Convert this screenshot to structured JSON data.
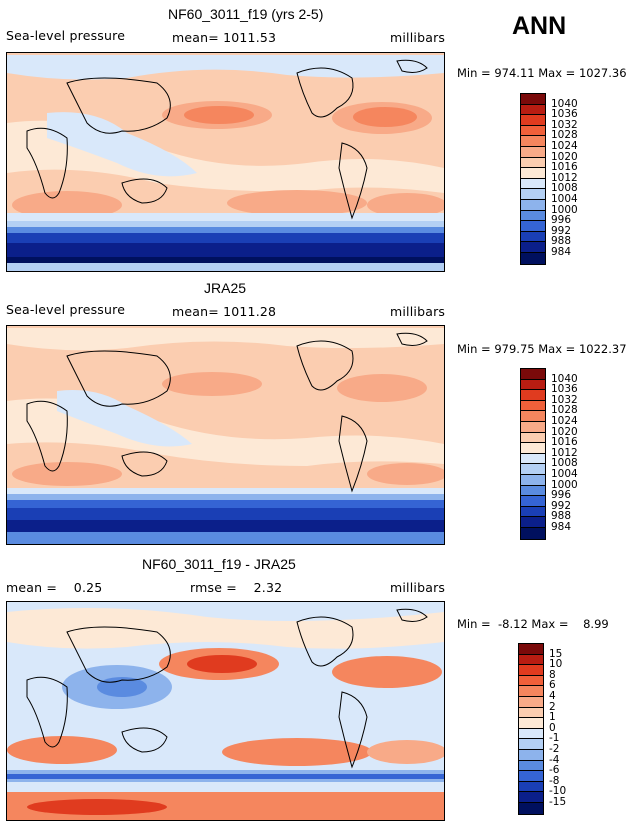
{
  "season": "ANN",
  "panels": [
    {
      "id": "model",
      "title": "NF60_3011_f19 (yrs 2-5)",
      "left_label": "Sea-level pressure",
      "center_label": "mean= 1011.53",
      "right_label": "millibars",
      "minmax": "Min = 974.11 Max = 1027.36",
      "colorbar": {
        "labels": [
          "1040",
          "1036",
          "1032",
          "1028",
          "1024",
          "1020",
          "1016",
          "1012",
          "1008",
          "1004",
          "1000",
          "996",
          "992",
          "988",
          "984"
        ],
        "colors": [
          "#7a0a0a",
          "#b81d12",
          "#e03b1f",
          "#f0603a",
          "#f5865e",
          "#f8aa88",
          "#fbcdb0",
          "#fde9d6",
          "#d9e8fa",
          "#b4d0f4",
          "#8db3ec",
          "#5a8be0",
          "#3564d4",
          "#1a3fb5",
          "#0b1f8a",
          "#00105e"
        ]
      }
    },
    {
      "id": "obs",
      "title": "JRA25",
      "left_label": "Sea-level pressure",
      "center_label": "mean= 1011.28",
      "right_label": "millibars",
      "minmax": "Min = 979.75 Max = 1022.37",
      "colorbar": {
        "labels": [
          "1040",
          "1036",
          "1032",
          "1028",
          "1024",
          "1020",
          "1016",
          "1012",
          "1008",
          "1004",
          "1000",
          "996",
          "992",
          "988",
          "984"
        ],
        "colors": [
          "#7a0a0a",
          "#b81d12",
          "#e03b1f",
          "#f0603a",
          "#f5865e",
          "#f8aa88",
          "#fbcdb0",
          "#fde9d6",
          "#d9e8fa",
          "#b4d0f4",
          "#8db3ec",
          "#5a8be0",
          "#3564d4",
          "#1a3fb5",
          "#0b1f8a",
          "#00105e"
        ]
      }
    },
    {
      "id": "diff",
      "title": "NF60_3011_f19 - JRA25",
      "left_label": "mean =    0.25",
      "center_label": "rmse =    2.32",
      "right_label": "millibars",
      "minmax": "Min =  -8.12 Max =    8.99",
      "colorbar": {
        "labels": [
          "15",
          "10",
          "8",
          "6",
          "4",
          "2",
          "1",
          "0",
          "-1",
          "-2",
          "-4",
          "-6",
          "-8",
          "-10",
          "-15"
        ],
        "colors": [
          "#7a0a0a",
          "#b81d12",
          "#e03b1f",
          "#f0603a",
          "#f5865e",
          "#f8aa88",
          "#fbcdb0",
          "#fde9d6",
          "#d9e8fa",
          "#b4d0f4",
          "#8db3ec",
          "#5a8be0",
          "#3564d4",
          "#1a3fb5",
          "#0b1f8a",
          "#00105e"
        ]
      }
    }
  ]
}
